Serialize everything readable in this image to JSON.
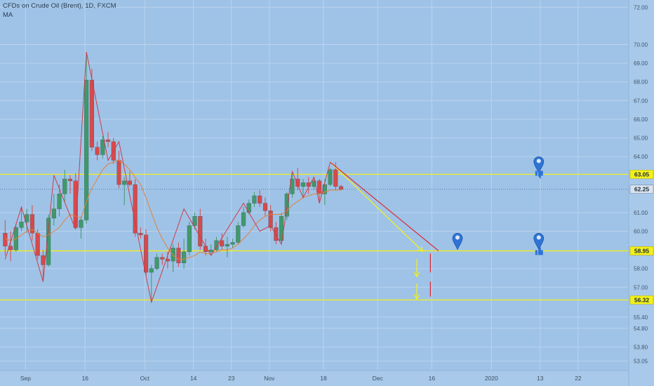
{
  "header": {
    "title": "CFDs on Crude Oil (Brent), 1D, FXCM",
    "indicator": "MA"
  },
  "colors": {
    "background": "#9fc3e7",
    "grid": "#b9d3ee",
    "up_candle": "#3f9a69",
    "down_candle": "#d8494b",
    "ma_line": "#e3823c",
    "zigzag_line": "#cf3c4a",
    "level_line": "#f2f01c",
    "projection_line": "#d8323e",
    "marker": "#2f74d6"
  },
  "chart_data": {
    "type": "candlestick",
    "y_axis": {
      "ticks": [
        "72.00",
        "70.00",
        "69.00",
        "68.00",
        "67.00",
        "66.00",
        "65.00",
        "64.00",
        "61.00",
        "60.00",
        "58.00",
        "57.00",
        "55.40",
        "54.80",
        "53.80",
        "53.05"
      ],
      "range": [
        52.8,
        72.2
      ]
    },
    "x_axis": {
      "labels": [
        "Sep",
        "16",
        "Oct",
        "14",
        "23",
        "Nov",
        "18",
        "Dec",
        "16",
        "2020",
        "13",
        "22"
      ],
      "label_bars": [
        4,
        15,
        26,
        35,
        42,
        49,
        59,
        69,
        79,
        90,
        99,
        106
      ]
    },
    "price_badges": [
      {
        "label": "63.05",
        "value": 63.05,
        "kind": "level"
      },
      {
        "label": "62.25",
        "value": 62.25,
        "kind": "last"
      },
      {
        "label": "58.95",
        "value": 58.95,
        "kind": "level"
      },
      {
        "label": "56.32",
        "value": 56.32,
        "kind": "level"
      }
    ],
    "horizontal_levels": [
      63.05,
      58.95,
      56.32
    ],
    "candles": [
      {
        "o": 59.9,
        "h": 60.6,
        "l": 58.7,
        "c": 59.2
      },
      {
        "o": 59.2,
        "h": 60.0,
        "l": 58.4,
        "c": 59.0
      },
      {
        "o": 59.0,
        "h": 60.4,
        "l": 58.9,
        "c": 60.2
      },
      {
        "o": 60.2,
        "h": 61.3,
        "l": 60.0,
        "c": 60.5
      },
      {
        "o": 60.5,
        "h": 61.2,
        "l": 59.9,
        "c": 60.9
      },
      {
        "o": 60.9,
        "h": 61.4,
        "l": 59.5,
        "c": 59.9
      },
      {
        "o": 59.9,
        "h": 60.1,
        "l": 58.5,
        "c": 58.7
      },
      {
        "o": 58.7,
        "h": 59.0,
        "l": 57.3,
        "c": 58.2
      },
      {
        "o": 58.2,
        "h": 60.9,
        "l": 58.1,
        "c": 60.7
      },
      {
        "o": 60.7,
        "h": 62.0,
        "l": 60.3,
        "c": 61.2
      },
      {
        "o": 61.2,
        "h": 62.5,
        "l": 60.8,
        "c": 62.0
      },
      {
        "o": 62.0,
        "h": 63.3,
        "l": 61.6,
        "c": 62.8
      },
      {
        "o": 62.8,
        "h": 63.0,
        "l": 62.0,
        "c": 62.7
      },
      {
        "o": 62.7,
        "h": 63.1,
        "l": 60.1,
        "c": 60.2
      },
      {
        "o": 60.2,
        "h": 60.8,
        "l": 59.6,
        "c": 60.6
      },
      {
        "o": 60.6,
        "h": 69.6,
        "l": 60.4,
        "c": 68.1
      },
      {
        "o": 68.1,
        "h": 68.7,
        "l": 64.3,
        "c": 64.5
      },
      {
        "o": 64.5,
        "h": 64.8,
        "l": 63.8,
        "c": 64.1
      },
      {
        "o": 64.1,
        "h": 65.1,
        "l": 63.9,
        "c": 64.9
      },
      {
        "o": 64.9,
        "h": 65.3,
        "l": 64.5,
        "c": 64.8
      },
      {
        "o": 64.8,
        "h": 65.0,
        "l": 63.6,
        "c": 63.8
      },
      {
        "o": 63.8,
        "h": 64.3,
        "l": 62.3,
        "c": 62.5
      },
      {
        "o": 62.5,
        "h": 62.9,
        "l": 61.4,
        "c": 62.7
      },
      {
        "o": 62.7,
        "h": 63.2,
        "l": 62.4,
        "c": 62.5
      },
      {
        "o": 62.5,
        "h": 62.8,
        "l": 59.7,
        "c": 59.9
      },
      {
        "o": 59.9,
        "h": 60.2,
        "l": 59.6,
        "c": 59.8
      },
      {
        "o": 59.8,
        "h": 60.1,
        "l": 57.6,
        "c": 57.8
      },
      {
        "o": 57.8,
        "h": 58.2,
        "l": 56.2,
        "c": 58.0
      },
      {
        "o": 58.0,
        "h": 58.8,
        "l": 57.9,
        "c": 58.6
      },
      {
        "o": 58.6,
        "h": 58.8,
        "l": 58.2,
        "c": 58.5
      },
      {
        "o": 58.5,
        "h": 58.9,
        "l": 58.0,
        "c": 58.4
      },
      {
        "o": 58.4,
        "h": 59.3,
        "l": 57.8,
        "c": 59.1
      },
      {
        "o": 59.1,
        "h": 59.4,
        "l": 58.1,
        "c": 58.3
      },
      {
        "o": 58.3,
        "h": 59.6,
        "l": 58.0,
        "c": 58.9
      },
      {
        "o": 58.9,
        "h": 60.5,
        "l": 58.7,
        "c": 60.3
      },
      {
        "o": 60.3,
        "h": 61.0,
        "l": 60.1,
        "c": 60.8
      },
      {
        "o": 60.8,
        "h": 61.2,
        "l": 59.0,
        "c": 59.2
      },
      {
        "o": 59.2,
        "h": 59.6,
        "l": 58.7,
        "c": 58.9
      },
      {
        "o": 58.9,
        "h": 59.3,
        "l": 58.7,
        "c": 59.0
      },
      {
        "o": 59.0,
        "h": 59.7,
        "l": 58.9,
        "c": 59.5
      },
      {
        "o": 59.5,
        "h": 59.9,
        "l": 59.0,
        "c": 59.2
      },
      {
        "o": 59.2,
        "h": 59.7,
        "l": 58.6,
        "c": 59.3
      },
      {
        "o": 59.3,
        "h": 59.6,
        "l": 59.1,
        "c": 59.4
      },
      {
        "o": 59.4,
        "h": 60.5,
        "l": 59.3,
        "c": 60.3
      },
      {
        "o": 60.3,
        "h": 61.3,
        "l": 60.2,
        "c": 61.0
      },
      {
        "o": 61.0,
        "h": 61.7,
        "l": 60.9,
        "c": 61.5
      },
      {
        "o": 61.5,
        "h": 62.1,
        "l": 61.3,
        "c": 61.9
      },
      {
        "o": 61.9,
        "h": 62.2,
        "l": 61.3,
        "c": 61.5
      },
      {
        "o": 61.5,
        "h": 61.8,
        "l": 60.8,
        "c": 61.1
      },
      {
        "o": 61.1,
        "h": 61.4,
        "l": 60.0,
        "c": 60.2
      },
      {
        "o": 60.2,
        "h": 60.5,
        "l": 59.3,
        "c": 59.5
      },
      {
        "o": 59.5,
        "h": 61.0,
        "l": 59.4,
        "c": 60.8
      },
      {
        "o": 60.8,
        "h": 62.1,
        "l": 60.6,
        "c": 62.0
      },
      {
        "o": 62.0,
        "h": 63.2,
        "l": 61.8,
        "c": 62.8
      },
      {
        "o": 62.8,
        "h": 63.4,
        "l": 62.2,
        "c": 62.4
      },
      {
        "o": 62.4,
        "h": 62.8,
        "l": 61.8,
        "c": 62.6
      },
      {
        "o": 62.6,
        "h": 62.9,
        "l": 62.0,
        "c": 62.4
      },
      {
        "o": 62.4,
        "h": 62.9,
        "l": 62.2,
        "c": 62.7
      },
      {
        "o": 62.7,
        "h": 62.8,
        "l": 61.6,
        "c": 62.0
      },
      {
        "o": 62.0,
        "h": 62.8,
        "l": 61.4,
        "c": 62.5
      },
      {
        "o": 62.5,
        "h": 63.4,
        "l": 62.4,
        "c": 63.3
      },
      {
        "o": 63.3,
        "h": 63.7,
        "l": 62.2,
        "c": 62.4
      },
      {
        "o": 62.4,
        "h": 62.5,
        "l": 62.2,
        "c": 62.25
      }
    ],
    "ma": [
      59.6,
      59.5,
      59.6,
      59.8,
      60.0,
      60.1,
      59.9,
      59.7,
      59.8,
      60.0,
      60.2,
      60.6,
      60.9,
      60.8,
      60.7,
      61.6,
      62.3,
      62.8,
      63.3,
      63.6,
      63.7,
      63.8,
      63.6,
      63.3,
      62.9,
      62.5,
      61.8,
      61.0,
      60.2,
      59.6,
      59.1,
      58.7,
      58.5,
      58.5,
      58.6,
      58.7,
      58.9,
      58.8,
      58.8,
      58.9,
      59.0,
      59.0,
      59.1,
      59.3,
      59.6,
      59.9,
      60.3,
      60.6,
      60.8,
      60.9,
      60.9,
      60.9,
      61.1,
      61.4,
      61.6,
      61.8,
      61.9,
      62.0,
      62.0,
      62.1,
      62.2,
      62.2,
      62.2
    ],
    "zigzag": [
      [
        0,
        58.5
      ],
      [
        3,
        61.3
      ],
      [
        7,
        57.3
      ],
      [
        9,
        63.0
      ],
      [
        13,
        60.1
      ],
      [
        15,
        69.6
      ],
      [
        19,
        63.8
      ],
      [
        21,
        64.8
      ],
      [
        26,
        57.6
      ],
      [
        27,
        56.2
      ],
      [
        33,
        61.2
      ],
      [
        38,
        58.7
      ],
      [
        44,
        61.5
      ],
      [
        47,
        60.0
      ],
      [
        49,
        60.3
      ],
      [
        51,
        59.3
      ],
      [
        53,
        63.2
      ],
      [
        55,
        61.8
      ],
      [
        57,
        62.9
      ],
      [
        58,
        61.5
      ],
      [
        60,
        63.7
      ]
    ],
    "projections": [
      {
        "from": [
          60,
          63.7
        ],
        "to": [
          77,
          58.95
        ],
        "color": "yellow"
      },
      {
        "from": [
          60,
          63.7
        ],
        "to": [
          80,
          58.95
        ],
        "color": "red"
      }
    ],
    "arrows": [
      {
        "bar": 76.5,
        "from": 58.5,
        "to": 57.6
      },
      {
        "bar": 76.5,
        "from": 57.2,
        "to": 56.4
      }
    ],
    "dashes": [
      {
        "bar": 79,
        "from": 58.8,
        "to": 57.8
      },
      {
        "bar": 79,
        "from": 57.3,
        "to": 56.5
      }
    ],
    "markers": [
      {
        "bar": 84,
        "value": 58.95,
        "type": "pin"
      },
      {
        "bar": 99,
        "value": 63.05,
        "type": "pin"
      },
      {
        "bar": 99,
        "value": 63.05,
        "type": "thumb-down"
      },
      {
        "bar": 99,
        "value": 58.95,
        "type": "pin"
      },
      {
        "bar": 99,
        "value": 58.95,
        "type": "thumb-up"
      }
    ]
  }
}
